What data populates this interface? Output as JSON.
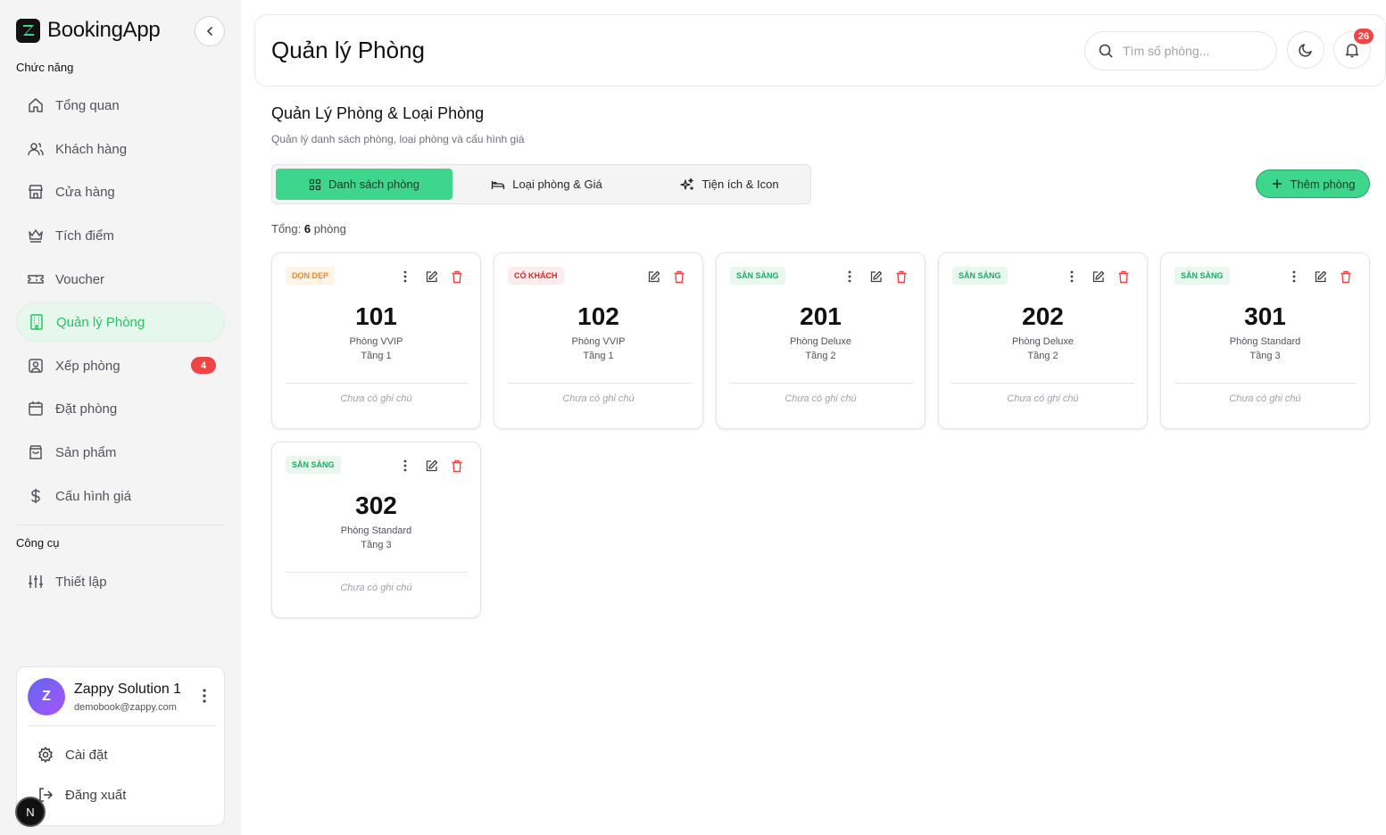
{
  "app": {
    "name": "BookingApp"
  },
  "sidebar": {
    "section_main": "Chức năng",
    "items": [
      {
        "label": "Tổng quan",
        "icon": "home-icon"
      },
      {
        "label": "Khách hàng",
        "icon": "users-icon"
      },
      {
        "label": "Cửa hàng",
        "icon": "store-icon"
      },
      {
        "label": "Tích điểm",
        "icon": "crown-icon"
      },
      {
        "label": "Voucher",
        "icon": "ticket-icon"
      },
      {
        "label": "Quản lý Phòng",
        "icon": "building-icon",
        "active": true
      },
      {
        "label": "Xếp phòng",
        "icon": "user-square-icon",
        "badge": "4"
      },
      {
        "label": "Đặt phòng",
        "icon": "calendar-icon"
      },
      {
        "label": "Sản phẩm",
        "icon": "shopping-bag-icon"
      },
      {
        "label": "Cấu hình giá",
        "icon": "dollar-icon"
      }
    ],
    "section_tools": "Công cụ",
    "tools": [
      {
        "label": "Thiết lập",
        "icon": "sliders-icon"
      }
    ]
  },
  "user": {
    "initial": "Z",
    "name": "Zappy Solution 1",
    "email": "demobook@zappy.com",
    "settings_label": "Cài đặt",
    "logout_label": "Đăng xuất"
  },
  "framework_badge": "N",
  "header": {
    "title": "Quản lý Phòng",
    "search_placeholder": "Tìm số phòng...",
    "notification_count": "26"
  },
  "main": {
    "title": "Quản Lý Phòng & Loại Phòng",
    "subtitle": "Quản lý danh sách phòng, loại phòng và cấu hình giá",
    "tabs": [
      {
        "label": "Danh sách phòng",
        "icon": "grid-icon",
        "active": true
      },
      {
        "label": "Loại phòng & Giá",
        "icon": "bed-icon"
      },
      {
        "label": "Tiện ích & Icon",
        "icon": "sparkles-icon"
      }
    ],
    "add_button": "Thêm phòng",
    "total_prefix": "Tổng: ",
    "total_count": "6",
    "total_suffix": " phòng"
  },
  "rooms": [
    {
      "status": "DỌN DẸP",
      "status_kind": "clean",
      "number": "101",
      "type": "Phòng VVIP",
      "floor": "Tầng 1",
      "note": "Chưa có ghi chú",
      "has_more": true
    },
    {
      "status": "CÓ KHÁCH",
      "status_kind": "busy",
      "number": "102",
      "type": "Phòng VVIP",
      "floor": "Tầng 1",
      "note": "Chưa có ghi chú",
      "has_more": false
    },
    {
      "status": "SẴN SÀNG",
      "status_kind": "ready",
      "number": "201",
      "type": "Phòng Deluxe",
      "floor": "Tầng 2",
      "note": "Chưa có ghi chú",
      "has_more": true
    },
    {
      "status": "SẴN SÀNG",
      "status_kind": "ready",
      "number": "202",
      "type": "Phòng Deluxe",
      "floor": "Tầng 2",
      "note": "Chưa có ghi chú",
      "has_more": true
    },
    {
      "status": "SẴN SÀNG",
      "status_kind": "ready",
      "number": "301",
      "type": "Phòng Standard",
      "floor": "Tầng 3",
      "note": "Chưa có ghi chú",
      "has_more": true
    },
    {
      "status": "SẴN SÀNG",
      "status_kind": "ready",
      "number": "302",
      "type": "Phòng Standard",
      "floor": "Tầng 3",
      "note": "Chưa có ghi chú",
      "has_more": true
    }
  ],
  "colors": {
    "accent": "#3dd68c",
    "active_text": "#22c55e",
    "danger": "#ef4444",
    "status_clean": "#ea8a2e",
    "status_busy": "#dc2626",
    "status_ready": "#22a866"
  }
}
